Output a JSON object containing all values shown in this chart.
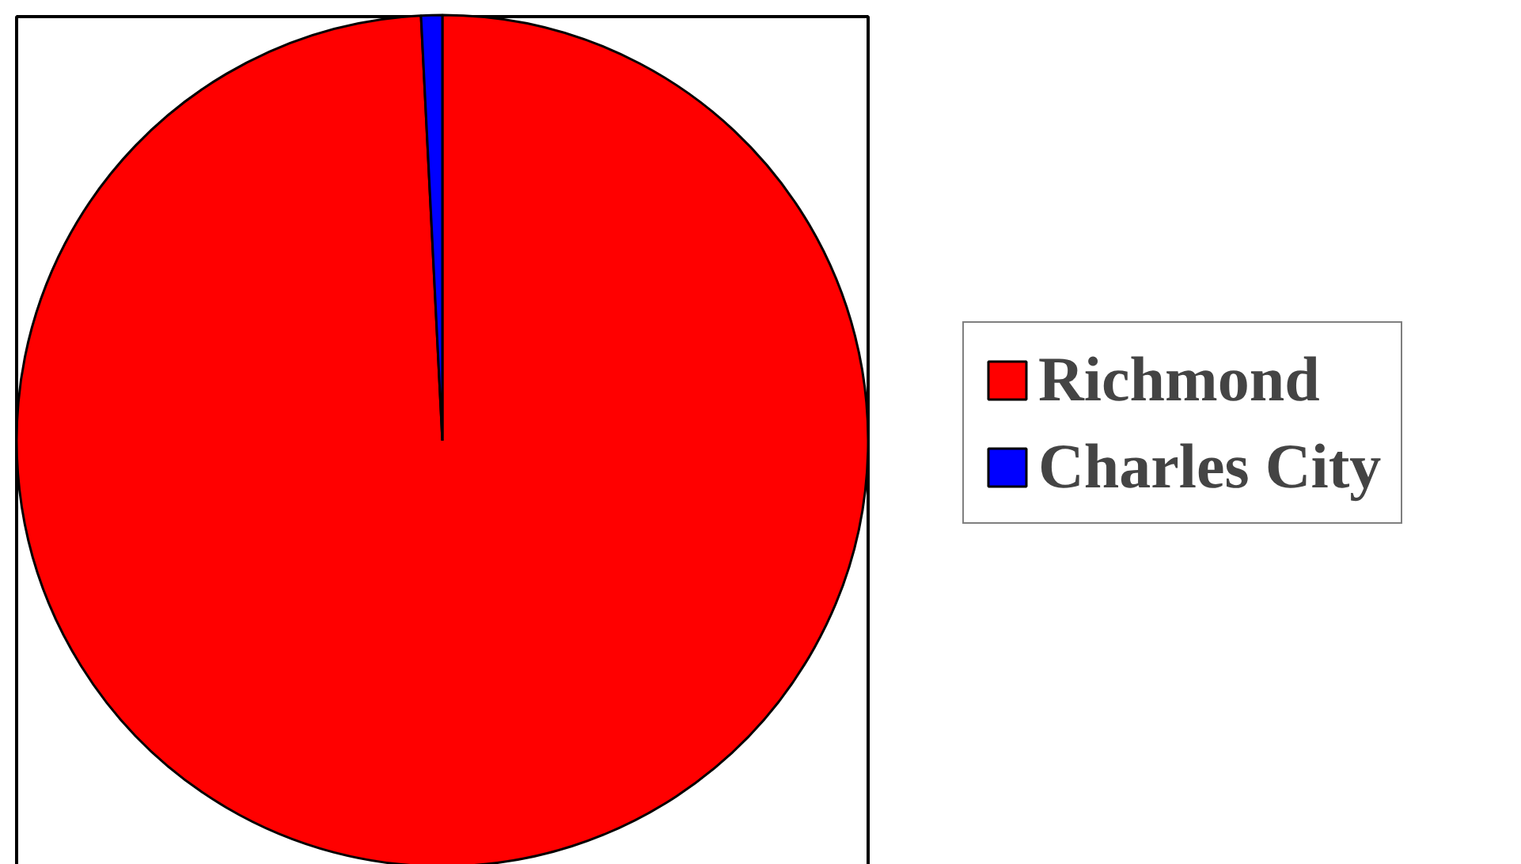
{
  "chart_data": {
    "type": "pie",
    "categories": [
      "Richmond",
      "Charles City"
    ],
    "values": [
      99.2,
      0.8
    ],
    "colors": [
      "#ff0000",
      "#0000ff"
    ],
    "legend": "right"
  }
}
